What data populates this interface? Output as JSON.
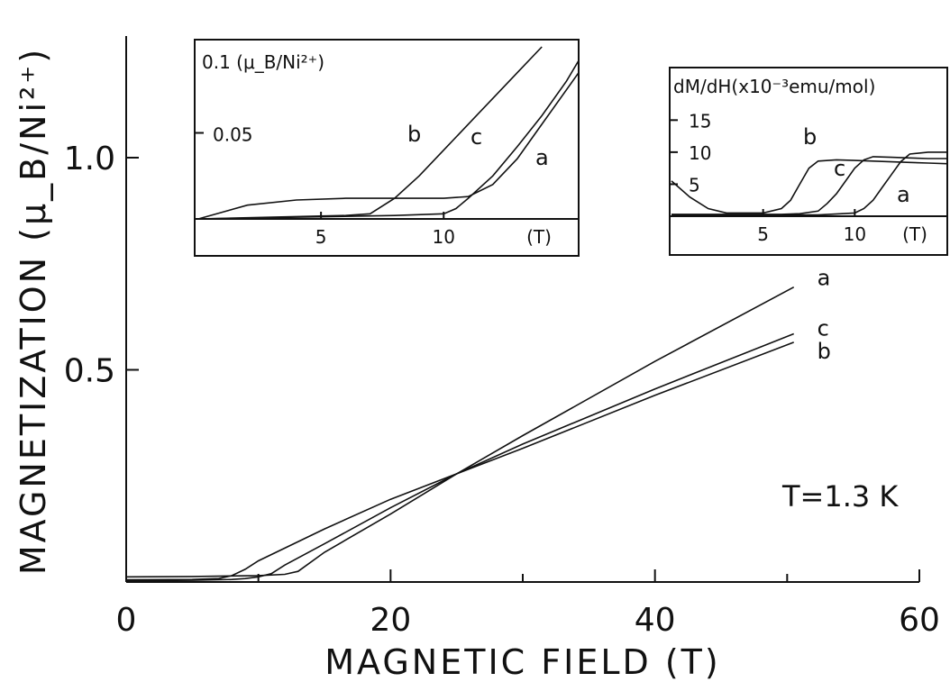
{
  "chart_data": [
    {
      "id": "main",
      "type": "line",
      "xlabel": "MAGNETIC FIELD (T)",
      "ylabel": "MAGNETIZATION (μ_B/Ni²⁺)",
      "xlim": [
        0,
        60
      ],
      "ylim": [
        0,
        1.25
      ],
      "x_ticks": [
        0,
        20,
        40,
        60
      ],
      "x_tick_labels": [
        "0",
        "20",
        "40",
        "60"
      ],
      "x_minor_ticks": [
        10,
        30,
        50
      ],
      "y_ticks": [
        0.5,
        1.0
      ],
      "y_tick_labels": [
        "0.5",
        "1.0"
      ],
      "annotation": "T=1.3 K",
      "grid": false,
      "series": [
        {
          "name": "a",
          "x": [
            0,
            5,
            10,
            12,
            13,
            15,
            20,
            25,
            30,
            40,
            50.5
          ],
          "y": [
            0.012,
            0.013,
            0.015,
            0.018,
            0.025,
            0.07,
            0.16,
            0.255,
            0.345,
            0.52,
            0.695
          ]
        },
        {
          "name": "b",
          "x": [
            0,
            5,
            7,
            8,
            9,
            10,
            15,
            20,
            25,
            30,
            40,
            50.5
          ],
          "y": [
            0.005,
            0.006,
            0.008,
            0.015,
            0.03,
            0.05,
            0.125,
            0.195,
            0.255,
            0.315,
            0.44,
            0.565
          ]
        },
        {
          "name": "c",
          "x": [
            0,
            5,
            8,
            9,
            10,
            11,
            12,
            15,
            20,
            25,
            30,
            40,
            50.5
          ],
          "y": [
            0.003,
            0.004,
            0.006,
            0.008,
            0.012,
            0.02,
            0.04,
            0.09,
            0.175,
            0.255,
            0.325,
            0.455,
            0.585
          ]
        }
      ]
    },
    {
      "id": "inset-magnetization",
      "type": "line",
      "xlabel": "(T)",
      "ylabel": "0.1 (μ_B/Ni²⁺)",
      "xlim": [
        0,
        15.5
      ],
      "ylim": [
        0,
        0.1
      ],
      "x_ticks": [
        5,
        10
      ],
      "x_tick_labels": [
        "5",
        "10"
      ],
      "y_ticks": [
        0.05
      ],
      "y_tick_labels": [
        "0.05"
      ],
      "series": [
        {
          "name": "a",
          "x": [
            0,
            2,
            4,
            6,
            8,
            10,
            11,
            12,
            13,
            14,
            15.5
          ],
          "y": [
            0,
            0.008,
            0.011,
            0.012,
            0.012,
            0.012,
            0.013,
            0.02,
            0.035,
            0.055,
            0.085
          ]
        },
        {
          "name": "b",
          "x": [
            0,
            3,
            6,
            7,
            8,
            9,
            10,
            11,
            12,
            13,
            14
          ],
          "y": [
            0,
            0.001,
            0.002,
            0.003,
            0.012,
            0.025,
            0.04,
            0.055,
            0.07,
            0.085,
            0.1
          ]
        },
        {
          "name": "c",
          "x": [
            0,
            4,
            8,
            10,
            10.5,
            11,
            12,
            13,
            14,
            15,
            15.5
          ],
          "y": [
            0,
            0.001,
            0.002,
            0.003,
            0.006,
            0.012,
            0.025,
            0.042,
            0.06,
            0.08,
            0.092
          ]
        }
      ]
    },
    {
      "id": "inset-derivative",
      "type": "line",
      "xlabel": "(T)",
      "ylabel": "dM/dH(x10⁻³emu/mol)",
      "xlim": [
        0,
        15
      ],
      "ylim": [
        0,
        18
      ],
      "x_ticks": [
        5,
        10
      ],
      "x_tick_labels": [
        "5",
        "10"
      ],
      "y_ticks": [
        5,
        10,
        15
      ],
      "y_tick_labels": [
        "5",
        "10",
        "15"
      ],
      "series": [
        {
          "name": "b",
          "x": [
            0,
            1,
            2,
            3,
            4,
            5,
            6,
            6.5,
            7,
            7.5,
            8,
            9,
            10,
            11,
            12,
            13,
            14,
            15
          ],
          "y": [
            5.5,
            3,
            1.2,
            0.5,
            0.5,
            0.5,
            1.2,
            2.5,
            5,
            7.5,
            8.6,
            8.8,
            8.7,
            8.6,
            8.5,
            8.4,
            8.3,
            8.2
          ]
        },
        {
          "name": "c",
          "x": [
            0,
            2,
            4,
            6,
            7,
            8,
            8.5,
            9,
            9.5,
            10,
            10.5,
            11,
            12,
            13,
            14,
            15
          ],
          "y": [
            0.3,
            0.3,
            0.3,
            0.3,
            0.4,
            0.8,
            2,
            3.5,
            5.5,
            7.5,
            8.8,
            9.3,
            9.2,
            9.1,
            9.0,
            9.0
          ]
        },
        {
          "name": "a",
          "x": [
            0,
            2,
            4,
            6,
            8,
            10,
            10.5,
            11,
            11.5,
            12,
            12.5,
            13,
            14,
            15
          ],
          "y": [
            0.2,
            0.2,
            0.2,
            0.2,
            0.2,
            0.5,
            1.2,
            2.5,
            4.5,
            6.5,
            8.5,
            9.7,
            10.0,
            10.0
          ]
        }
      ]
    }
  ]
}
